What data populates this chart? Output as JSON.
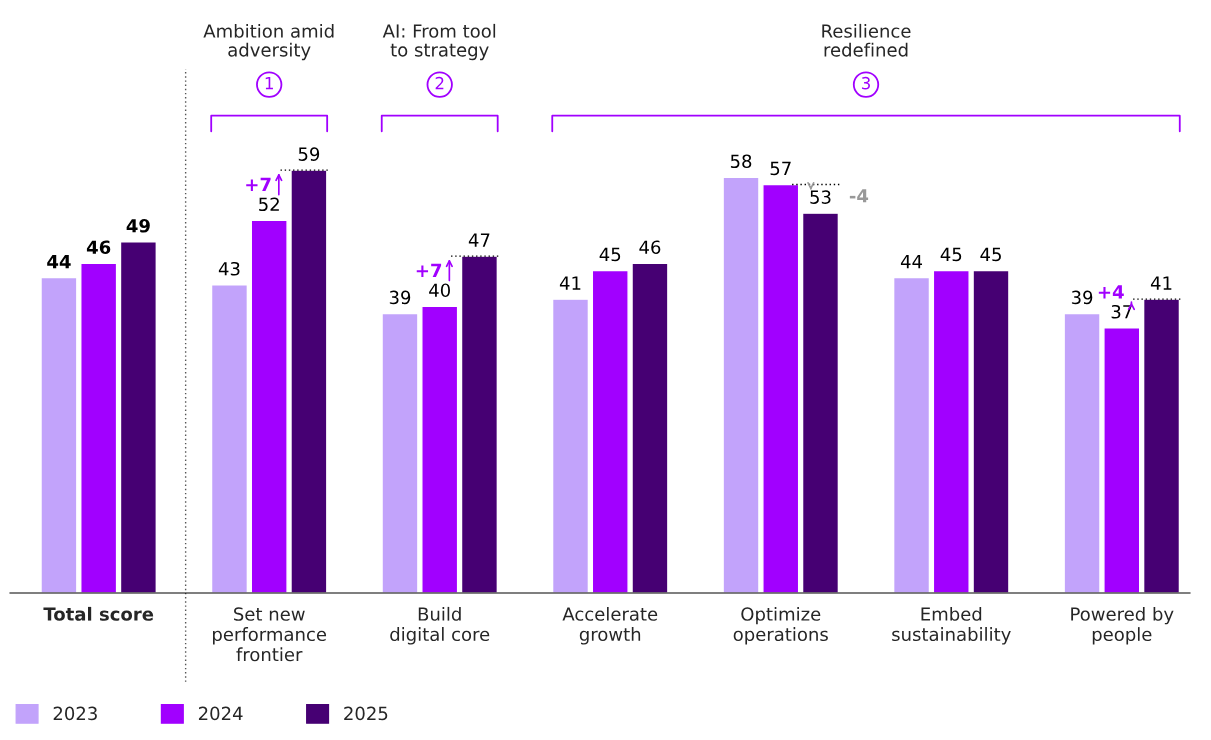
{
  "chart_data": {
    "type": "bar",
    "categories": [
      "Total score",
      "Set new\nperformance\nfrontier",
      "Build\ndigital core",
      "Accelerate\ngrowth",
      "Optimize\noperations",
      "Embed\nsustainability",
      "Powered by\npeople"
    ],
    "series": [
      {
        "name": "2023",
        "color": "#c2a3fb",
        "values": [
          44,
          43,
          39,
          41,
          58,
          44,
          39
        ]
      },
      {
        "name": "2024",
        "color": "#a100ff",
        "values": [
          46,
          52,
          40,
          45,
          57,
          45,
          37
        ]
      },
      {
        "name": "2025",
        "color": "#460073",
        "values": [
          49,
          59,
          47,
          46,
          53,
          45,
          41
        ]
      }
    ],
    "tick_labels": "x",
    "data_labels": true,
    "legend": "bottom left",
    "grid": false,
    "annotations": [
      "Ambition amid\nadversity",
      "1",
      "AI: From tool\nto strategy",
      "2",
      "Resilience\nredefined",
      "3",
      "+7",
      "+7",
      "-4",
      "+4"
    ]
  }
}
